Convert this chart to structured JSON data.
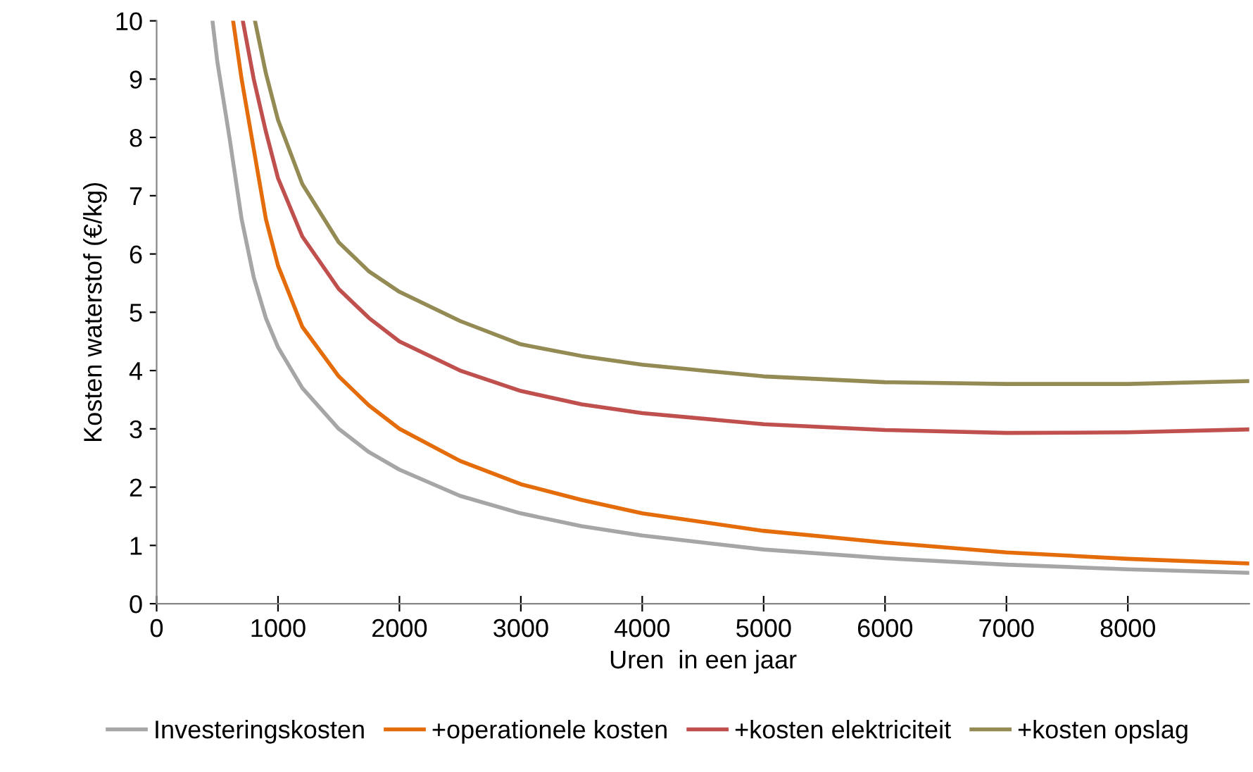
{
  "chart_data": {
    "type": "line",
    "xlabel": "Uren  in een jaar",
    "ylabel": "Kosten waterstof (€/kg)",
    "xlim": [
      0,
      9000
    ],
    "ylim": [
      0,
      10
    ],
    "xticks": [
      0,
      1000,
      2000,
      3000,
      4000,
      5000,
      6000,
      7000,
      8000
    ],
    "yticks": [
      0,
      1,
      2,
      3,
      4,
      5,
      6,
      7,
      8,
      9,
      10
    ],
    "grid": false,
    "legend": "bottom",
    "marker": "none",
    "line_style": "solid",
    "series": [
      {
        "name": "Investeringskosten",
        "color": "#a6a6a6",
        "x": [
          460,
          500,
          600,
          700,
          800,
          900,
          1000,
          1200,
          1500,
          1750,
          2000,
          2500,
          3000,
          3500,
          4000,
          5000,
          6000,
          7000,
          8000,
          9000
        ],
        "values": [
          10,
          9.3,
          8,
          6.6,
          5.6,
          4.9,
          4.4,
          3.7,
          3.0,
          2.6,
          2.3,
          1.85,
          1.55,
          1.33,
          1.17,
          0.93,
          0.78,
          0.67,
          0.59,
          0.53
        ]
      },
      {
        "name": "+operationele kosten",
        "color": "#e46c0a",
        "x": [
          630,
          700,
          800,
          900,
          1000,
          1200,
          1500,
          1750,
          2000,
          2500,
          3000,
          3500,
          4000,
          5000,
          6000,
          7000,
          8000,
          9000
        ],
        "values": [
          10,
          9.0,
          7.8,
          6.6,
          5.8,
          4.75,
          3.9,
          3.4,
          3.0,
          2.45,
          2.05,
          1.78,
          1.55,
          1.25,
          1.05,
          0.88,
          0.77,
          0.69
        ]
      },
      {
        "name": "+kosten elektriciteit",
        "color": "#c0504d",
        "x": [
          710,
          800,
          900,
          1000,
          1200,
          1500,
          1750,
          2000,
          2500,
          3000,
          3500,
          4000,
          5000,
          6000,
          7000,
          8000,
          9000
        ],
        "values": [
          10,
          9.0,
          8.1,
          7.3,
          6.3,
          5.4,
          4.9,
          4.5,
          4.0,
          3.65,
          3.42,
          3.27,
          3.08,
          2.98,
          2.93,
          2.94,
          2.99
        ]
      },
      {
        "name": "+kosten opslag",
        "color": "#948a54",
        "x": [
          810,
          900,
          1000,
          1200,
          1500,
          1750,
          2000,
          2500,
          3000,
          3500,
          4000,
          5000,
          6000,
          7000,
          8000,
          9000
        ],
        "values": [
          10,
          9.1,
          8.3,
          7.2,
          6.2,
          5.7,
          5.35,
          4.85,
          4.45,
          4.25,
          4.1,
          3.9,
          3.8,
          3.77,
          3.77,
          3.82
        ]
      }
    ]
  }
}
